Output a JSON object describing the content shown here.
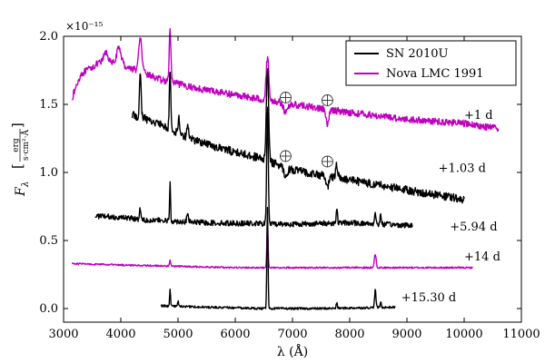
{
  "chart_data": {
    "type": "line",
    "xlabel": "λ (Å)",
    "ylabel": "F",
    "ylabel_sub": "λ",
    "ylabel_unit_num": "erg",
    "ylabel_unit_den": "s·cm²·Å",
    "y_multiplier": "×10⁻¹⁵",
    "xlim": [
      3000,
      11000
    ],
    "ylim": [
      -0.1,
      2.0
    ],
    "xticks": [
      3000,
      4000,
      5000,
      6000,
      7000,
      8000,
      9000,
      10000,
      11000
    ],
    "yticks": [
      0.0,
      0.5,
      1.0,
      1.5,
      2.0
    ],
    "xtick_labels": [
      "3000",
      "4000",
      "5000",
      "6000",
      "7000",
      "8000",
      "9000",
      "10000",
      "11000"
    ],
    "ytick_labels": [
      "0.0",
      "0.5",
      "1.0",
      "1.5",
      "2.0"
    ],
    "grid": false,
    "legend_position": "top-right",
    "colors": {
      "sn": "#000000",
      "nova": "#bf00bf"
    },
    "legend": [
      {
        "label": "SN 2010U",
        "color": "#000000"
      },
      {
        "label": "Nova LMC 1991",
        "color": "#bf00bf"
      }
    ],
    "telluric_markers": [
      {
        "x": 6880,
        "y": 1.55
      },
      {
        "x": 7610,
        "y": 1.53
      },
      {
        "x": 6880,
        "y": 1.12
      },
      {
        "x": 7610,
        "y": 1.08
      }
    ],
    "series": [
      {
        "label": "+1 d",
        "color": "#bf00bf",
        "label_pos": [
          10000,
          1.42
        ],
        "range": [
          3150,
          10600
        ],
        "cont": [
          [
            3150,
            1.55
          ],
          [
            3300,
            1.72
          ],
          [
            3600,
            1.8
          ],
          [
            3900,
            1.8
          ],
          [
            4300,
            1.75
          ],
          [
            4700,
            1.68
          ],
          [
            5300,
            1.62
          ],
          [
            6000,
            1.57
          ],
          [
            7000,
            1.5
          ],
          [
            8000,
            1.44
          ],
          [
            9000,
            1.39
          ],
          [
            10000,
            1.36
          ],
          [
            10600,
            1.32
          ]
        ],
        "noise": 0.025,
        "lines": [
          [
            3740,
            0.08,
            40
          ],
          [
            3970,
            0.12,
            40
          ],
          [
            4340,
            0.25,
            25
          ],
          [
            4861,
            0.38,
            15
          ],
          [
            6563,
            0.32,
            22
          ],
          [
            6880,
            -0.07,
            35
          ],
          [
            7610,
            -0.12,
            25
          ]
        ]
      },
      {
        "label": "+1.03 d",
        "color": "#000000",
        "label_pos": [
          9550,
          1.03
        ],
        "range": [
          4200,
          10000
        ],
        "cont": [
          [
            4200,
            1.42
          ],
          [
            4400,
            1.4
          ],
          [
            4700,
            1.35
          ],
          [
            5200,
            1.25
          ],
          [
            5800,
            1.17
          ],
          [
            6300,
            1.12
          ],
          [
            7000,
            1.02
          ],
          [
            7600,
            0.97
          ],
          [
            8200,
            0.93
          ],
          [
            9000,
            0.87
          ],
          [
            10000,
            0.8
          ]
        ],
        "noise": 0.03,
        "lines": [
          [
            4340,
            0.3,
            15
          ],
          [
            4861,
            0.45,
            12
          ],
          [
            5016,
            0.12,
            14
          ],
          [
            5169,
            0.1,
            14
          ],
          [
            6563,
            0.68,
            20
          ],
          [
            6880,
            -0.06,
            30
          ],
          [
            7610,
            -0.08,
            25
          ],
          [
            7774,
            0.1,
            18
          ]
        ]
      },
      {
        "label": "+5.94 d",
        "color": "#000000",
        "label_pos": [
          9750,
          0.6
        ],
        "range": [
          3550,
          9100
        ],
        "cont": [
          [
            3550,
            0.68
          ],
          [
            4000,
            0.67
          ],
          [
            4500,
            0.65
          ],
          [
            5500,
            0.63
          ],
          [
            7000,
            0.62
          ],
          [
            8000,
            0.63
          ],
          [
            9100,
            0.61
          ]
        ],
        "noise": 0.02,
        "lines": [
          [
            4340,
            0.08,
            12
          ],
          [
            4861,
            0.3,
            8
          ],
          [
            5169,
            0.06,
            14
          ],
          [
            6563,
            0.88,
            13
          ],
          [
            7774,
            0.1,
            12
          ],
          [
            8446,
            0.08,
            12
          ],
          [
            8542,
            0.06,
            12
          ]
        ]
      },
      {
        "label": "+14 d",
        "color": "#bf00bf",
        "label_pos": [
          10000,
          0.38
        ],
        "range": [
          3150,
          10150
        ],
        "cont": [
          [
            3150,
            0.33
          ],
          [
            4000,
            0.32
          ],
          [
            5000,
            0.31
          ],
          [
            6000,
            0.3
          ],
          [
            8000,
            0.3
          ],
          [
            10150,
            0.3
          ]
        ],
        "noise": 0.006,
        "lines": [
          [
            4861,
            0.04,
            10
          ],
          [
            6563,
            0.34,
            10
          ],
          [
            8446,
            0.1,
            16
          ]
        ]
      },
      {
        "label": "+15.30 d",
        "color": "#000000",
        "label_pos": [
          8900,
          0.08
        ],
        "range": [
          4700,
          8800
        ],
        "cont": [
          [
            4700,
            0.02
          ],
          [
            5500,
            0.01
          ],
          [
            6500,
            0.0
          ],
          [
            7500,
            0.0
          ],
          [
            8800,
            0.01
          ]
        ],
        "noise": 0.008,
        "lines": [
          [
            4861,
            0.12,
            8
          ],
          [
            5000,
            0.04,
            10
          ],
          [
            6563,
            0.75,
            10
          ],
          [
            7774,
            0.04,
            10
          ],
          [
            8446,
            0.13,
            12
          ],
          [
            8542,
            0.04,
            10
          ]
        ]
      }
    ]
  }
}
